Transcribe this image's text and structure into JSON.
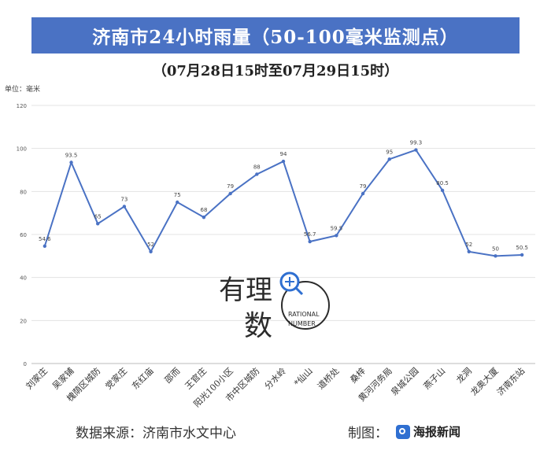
{
  "header": {
    "title": "济南市24小时雨量（50-100毫米监测点）",
    "subtitle": "（07月28日15时至07月29日15时）",
    "unit": "单位：毫米"
  },
  "footer": {
    "source": "数据来源：济南市水文中心",
    "made_by": "制图：",
    "logo_text": "海报新闻"
  },
  "watermark": {
    "line1": "有理",
    "line2": "数",
    "en1": "RATIONAL",
    "en2": "NUMBER"
  },
  "colors": {
    "title_bg": "#4a72c4",
    "line": "#4a72c4",
    "grid": "#e3e3e3"
  },
  "chart_data": {
    "type": "line",
    "categories": [
      "刘家庄",
      "吴家铺",
      "槐荫区城防",
      "党家庄",
      "东红庙",
      "邵而",
      "王官庄",
      "阳光100小区",
      "市中区城防",
      "分水岭",
      "*仙山",
      "道桥处",
      "桑梓",
      "黄河河务局",
      "泉城公园",
      "燕子山",
      "龙洞",
      "龙奥大厦",
      "济南东站"
    ],
    "values": [
      54.6,
      93.5,
      65,
      73,
      52,
      75,
      68,
      79,
      88,
      94,
      56.7,
      59.5,
      79,
      95,
      99.3,
      80.5,
      52,
      50,
      50.5
    ],
    "value_labels": [
      "54.6",
      "93.5",
      "65",
      "73",
      "52",
      "75",
      "68",
      "79",
      "88",
      "94",
      "56.7",
      "59.5",
      "79",
      "95",
      "99.3",
      "80.5",
      "52",
      "50",
      "50.5"
    ],
    "yticks": [
      "0",
      "20",
      "40",
      "60",
      "80",
      "100",
      "120"
    ],
    "ylim": [
      0,
      120
    ],
    "grid": true,
    "legend": "none"
  }
}
